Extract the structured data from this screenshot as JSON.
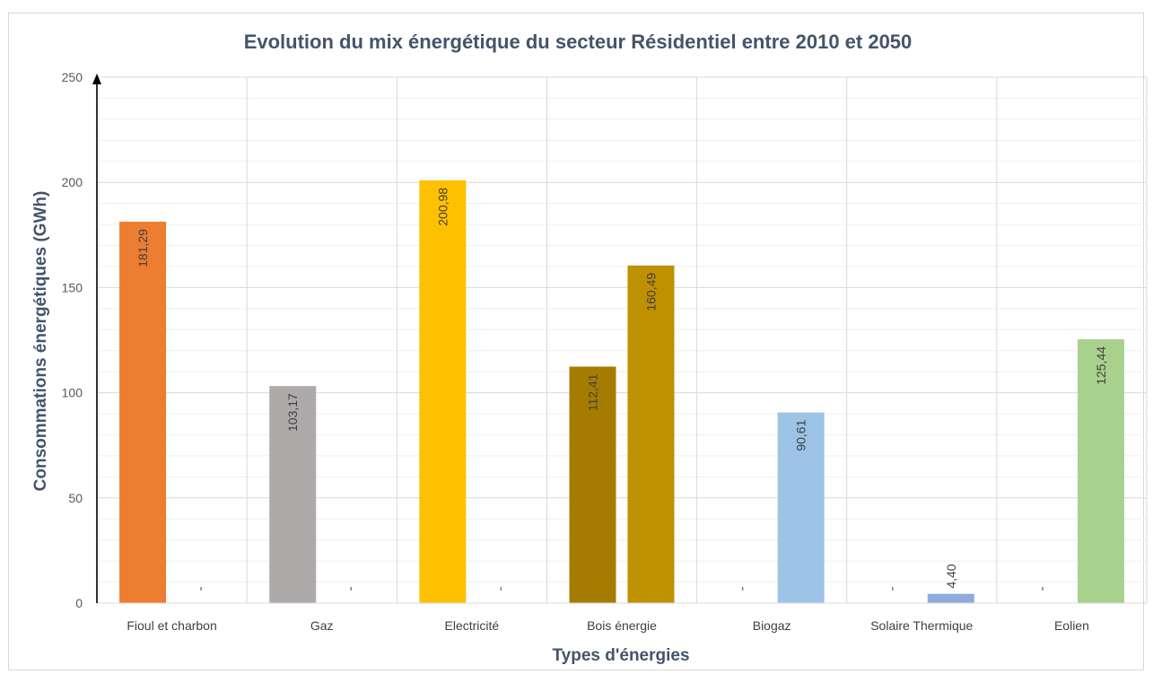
{
  "chart_data": {
    "type": "bar",
    "title": "Evolution du mix énergétique du secteur Résidentiel entre 2010 et 2050",
    "xlabel": "Types d'énergies",
    "ylabel": "Consommations énergétiques (GWh)",
    "ylim": [
      0,
      250
    ],
    "yticks": [
      "0",
      "50",
      "100",
      "150",
      "200",
      "250"
    ],
    "grid": true,
    "legend": "none",
    "categories": [
      "Fioul et charbon",
      "Gaz",
      "Electricité",
      "Bois énergie",
      "Biogaz",
      "Solaire Thermique",
      "Eolien"
    ],
    "series": [
      {
        "values": [
          181.29,
          103.17,
          200.98,
          112.41,
          0,
          0,
          0
        ],
        "labels": [
          "181,29",
          "103,17",
          "200,98",
          "112,41",
          "",
          "",
          ""
        ],
        "colors": [
          "#ed7d31",
          "#aeaaaa",
          "#ffc000",
          "#a67c00",
          "#9dc3e6",
          "#8faadc",
          "#a9d18e"
        ]
      },
      {
        "values": [
          0,
          0,
          0,
          160.49,
          90.61,
          4.4,
          125.44
        ],
        "labels": [
          "",
          "",
          "",
          "160,49",
          "90,61",
          "4,40",
          "125,44"
        ],
        "colors": [
          "#ed7d31",
          "#aeaaaa",
          "#ffc000",
          "#bf9000",
          "#9dc3e6",
          "#8faadc",
          "#a9d18e"
        ]
      }
    ]
  }
}
